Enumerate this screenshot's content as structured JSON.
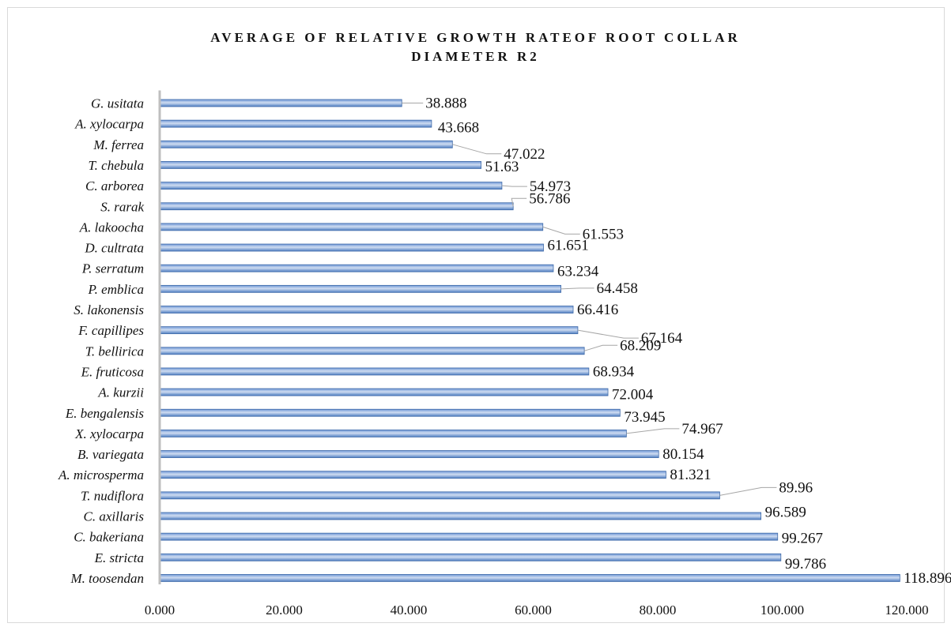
{
  "chart_data": {
    "type": "bar",
    "orientation": "horizontal",
    "title": "AVERAGE OF RELATIVE  GROWTH RATEOF ROOT COLLAR\nDIAMETER R2",
    "xlabel": "",
    "ylabel": "",
    "xlim": [
      0,
      120
    ],
    "ticks": [
      "0.000",
      "20.000",
      "40.000",
      "60.000",
      "80.000",
      "100.000",
      "120.000"
    ],
    "grid": false,
    "bar_color": "#4f7ec2",
    "categories": [
      "G. usitata",
      "A. xylocarpa",
      "M. ferrea",
      "T. chebula",
      "C. arborea",
      "S. rarak",
      "A. lakoocha",
      "D. cultrata",
      "P. serratum",
      "P. emblica",
      "S. lakonensis",
      "F. capillipes",
      "T. bellirica",
      "E. fruticosa",
      "A. kurzii",
      "E. bengalensis",
      "X. xylocarpa",
      "B. variegata",
      "A. microsperma",
      "T. nudiflora",
      "C. axillaris",
      "C. bakeriana",
      "E. stricta",
      "M. toosendan"
    ],
    "values": [
      38.888,
      43.668,
      47.022,
      51.63,
      54.973,
      56.786,
      61.553,
      61.651,
      63.234,
      64.458,
      66.416,
      67.164,
      68.209,
      68.934,
      72.004,
      73.945,
      74.967,
      80.154,
      81.321,
      89.96,
      96.589,
      99.267,
      99.786,
      118.896
    ],
    "value_labels": [
      "38.888",
      "43.668",
      "47.022",
      "51.63",
      "54.973",
      "56.786",
      "61.553",
      "61.651",
      "63.234",
      "64.458",
      "66.416",
      "67.164",
      "68.209",
      "68.934",
      "72.004",
      "73.945",
      "74.967",
      "80.154",
      "81.321",
      "89.96",
      "96.589",
      "99.267",
      "99.786",
      "118.896"
    ]
  }
}
